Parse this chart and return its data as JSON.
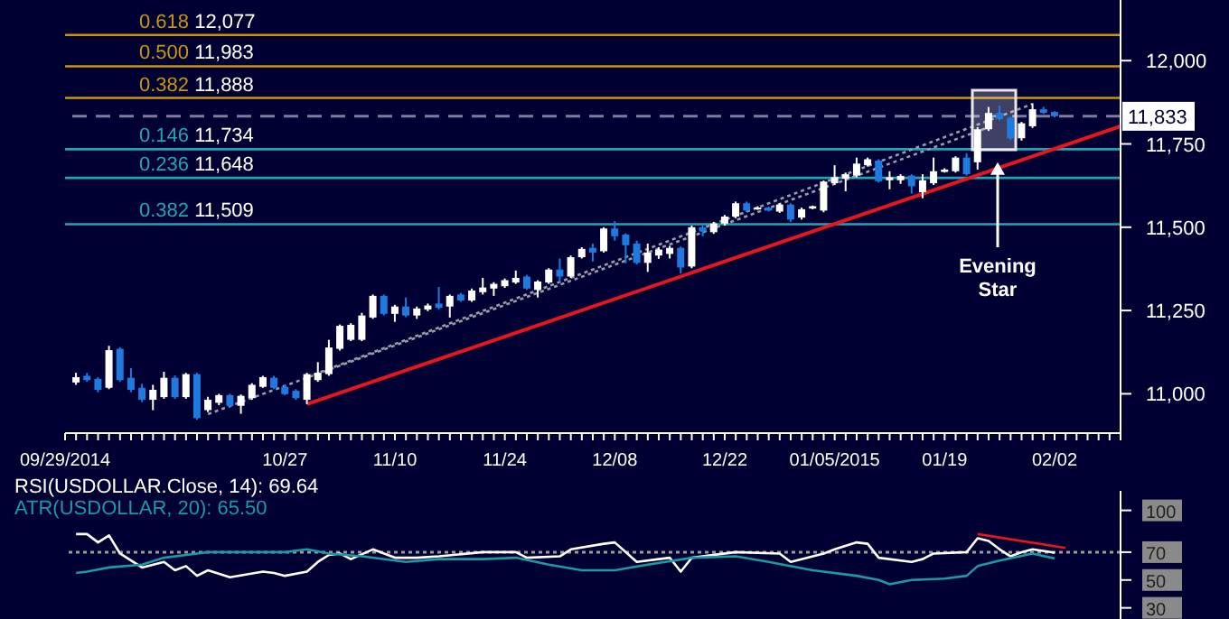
{
  "chart_data": [
    {
      "type": "candlestick",
      "categories": [
        "09/29/2014",
        null,
        null,
        null,
        null,
        null,
        null,
        null,
        null,
        null,
        null,
        null,
        null,
        null,
        null,
        null,
        null,
        null,
        null,
        null,
        "10/27",
        null,
        null,
        null,
        null,
        null,
        null,
        null,
        null,
        null,
        "11/10",
        null,
        null,
        null,
        null,
        null,
        null,
        null,
        null,
        null,
        "11/24",
        null,
        null,
        null,
        null,
        null,
        null,
        null,
        null,
        null,
        "12/08",
        null,
        null,
        null,
        null,
        null,
        null,
        null,
        null,
        null,
        "12/22",
        null,
        null,
        null,
        null,
        null,
        null,
        null,
        null,
        null,
        "01/05/2015",
        null,
        null,
        null,
        null,
        null,
        null,
        null,
        null,
        null,
        "01/19",
        null,
        null,
        null,
        null,
        null,
        null,
        null,
        null,
        null,
        "02/02",
        null,
        null,
        null,
        null,
        null,
        null
      ],
      "ohlc": [
        null,
        [
          11034,
          11063,
          11027,
          11050
        ],
        [
          11054,
          11063,
          11036,
          11041
        ],
        [
          11045,
          11050,
          11005,
          11012
        ],
        [
          11018,
          11144,
          11014,
          11131
        ],
        [
          11135,
          11140,
          11036,
          11041
        ],
        [
          11048,
          11077,
          11005,
          11012
        ],
        [
          11018,
          11030,
          10975,
          10982
        ],
        [
          10982,
          11027,
          10951,
          11012
        ],
        [
          10990,
          11066,
          10985,
          11048
        ],
        [
          11048,
          11055,
          10985,
          10990
        ],
        [
          10990,
          11063,
          10985,
          11059
        ],
        [
          11059,
          11063,
          10922,
          10927
        ],
        [
          10951,
          10991,
          10945,
          10982
        ],
        [
          10973,
          11000,
          10966,
          10996
        ],
        [
          10996,
          11000,
          10960,
          10964
        ],
        [
          10964,
          10998,
          10940,
          10994
        ],
        [
          10987,
          11032,
          10982,
          11027
        ],
        [
          11021,
          11054,
          11018,
          11050
        ],
        [
          11048,
          11054,
          11014,
          11018
        ],
        [
          11021,
          11027,
          10996,
          10999
        ],
        [
          11009,
          11014,
          10982,
          10987
        ],
        [
          10982,
          11063,
          10969,
          11059
        ],
        [
          11041,
          11095,
          11036,
          11063
        ],
        [
          11059,
          11162,
          11054,
          11139
        ],
        [
          11135,
          11208,
          11130,
          11204
        ],
        [
          11162,
          11212,
          11158,
          11207
        ],
        [
          11162,
          11243,
          11158,
          11235
        ],
        [
          11229,
          11298,
          11225,
          11294
        ],
        [
          11294,
          11298,
          11235,
          11240
        ],
        [
          11240,
          11267,
          11216,
          11262
        ],
        [
          11262,
          11289,
          11230,
          11235
        ],
        [
          11235,
          11262,
          11225,
          11256
        ],
        [
          11253,
          11271,
          11248,
          11265
        ],
        [
          11271,
          11321,
          11253,
          11258
        ],
        [
          11262,
          11298,
          11229,
          11294
        ],
        [
          11298,
          11303,
          11276,
          11280
        ],
        [
          11280,
          11316,
          11276,
          11310
        ],
        [
          11305,
          11348,
          11298,
          11319
        ],
        [
          11316,
          11335,
          11294,
          11330
        ],
        [
          11323,
          11346,
          11318,
          11341
        ],
        [
          11334,
          11370,
          11330,
          11348
        ],
        [
          11352,
          11357,
          11312,
          11316
        ],
        [
          11312,
          11341,
          11289,
          11337
        ],
        [
          11334,
          11377,
          11330,
          11373
        ],
        [
          11373,
          11406,
          11334,
          11352
        ],
        [
          11352,
          11415,
          11348,
          11410
        ],
        [
          11410,
          11440,
          11406,
          11435
        ],
        [
          11438,
          11451,
          11397,
          11424
        ],
        [
          11428,
          11500,
          11424,
          11496
        ],
        [
          11496,
          11518,
          11460,
          11473
        ],
        [
          11478,
          11482,
          11392,
          11446
        ],
        [
          11451,
          11460,
          11388,
          11393
        ],
        [
          11393,
          11451,
          11366,
          11424
        ],
        [
          11415,
          11440,
          11405,
          11433
        ],
        [
          11420,
          11444,
          11406,
          11438
        ],
        [
          11438,
          11442,
          11361,
          11379
        ],
        [
          11382,
          11505,
          11377,
          11500
        ],
        [
          11500,
          11505,
          11473,
          11487
        ],
        [
          11485,
          11516,
          11480,
          11511
        ],
        [
          11511,
          11537,
          11505,
          11532
        ],
        [
          11532,
          11577,
          11527,
          11572
        ],
        [
          11572,
          11577,
          11545,
          11550
        ],
        [
          11556,
          11563,
          11552,
          11559
        ],
        [
          11559,
          11562,
          11547,
          11550
        ],
        [
          11547,
          11572,
          11543,
          11568
        ],
        [
          11568,
          11572,
          11516,
          11523
        ],
        [
          11529,
          11559,
          11523,
          11554
        ],
        [
          11556,
          11565,
          11554,
          11563
        ],
        [
          11550,
          11640,
          11545,
          11637
        ],
        [
          11632,
          11686,
          11627,
          11650
        ],
        [
          11646,
          11664,
          11608,
          11659
        ],
        [
          11655,
          11709,
          11650,
          11691
        ],
        [
          11686,
          11709,
          11682,
          11704
        ],
        [
          11700,
          11704,
          11634,
          11638
        ],
        [
          11641,
          11668,
          11614,
          11650
        ],
        [
          11641,
          11659,
          11630,
          11654
        ],
        [
          11655,
          11659,
          11601,
          11623
        ],
        [
          11605,
          11659,
          11587,
          11641
        ],
        [
          11632,
          11709,
          11627,
          11668
        ],
        [
          11666,
          11677,
          11664,
          11673
        ],
        [
          11668,
          11713,
          11664,
          11709
        ],
        [
          11709,
          11722,
          11655,
          11659
        ],
        [
          11695,
          11800,
          11673,
          11794
        ],
        [
          11794,
          11861,
          11789,
          11843
        ],
        [
          11843,
          11865,
          11820,
          11825
        ],
        [
          11828,
          11832,
          11762,
          11767
        ],
        [
          11767,
          11816,
          11760,
          11812
        ],
        [
          11803,
          11872,
          11798,
          11854
        ],
        [
          11854,
          11861,
          11840,
          11843
        ],
        [
          11846,
          11848,
          11830,
          11833
        ],
        null,
        null,
        null,
        null,
        null,
        null
      ],
      "series": [
        {
          "type": "line",
          "color": "#e8141e",
          "values": [
            null,
            null,
            null,
            null,
            null,
            null,
            null,
            null,
            null,
            null,
            null,
            null,
            null,
            null,
            null,
            null,
            null,
            null,
            null,
            null,
            null,
            null,
            10969,
            null,
            null,
            null,
            null,
            null,
            null,
            null,
            null,
            null,
            null,
            null,
            null,
            null,
            null,
            null,
            null,
            null,
            null,
            null,
            null,
            null,
            null,
            null,
            null,
            null,
            null,
            null,
            null,
            null,
            null,
            null,
            null,
            null,
            null,
            null,
            null,
            null,
            null,
            null,
            null,
            null,
            null,
            null,
            null,
            null,
            null,
            null,
            null,
            null,
            null,
            null,
            null,
            null,
            null,
            null,
            null,
            null,
            null,
            null,
            null,
            null,
            null,
            null,
            null,
            null,
            null,
            null,
            null,
            null,
            null,
            null,
            null,
            null,
            11803
          ]
        },
        {
          "type": "line",
          "color": "#9a9aaa",
          "line_style": "dotted",
          "values": [
            null,
            null,
            null,
            null,
            null,
            null,
            null,
            null,
            null,
            null,
            null,
            null,
            null,
            null,
            null,
            null,
            null,
            null,
            null,
            null,
            null,
            null,
            11050,
            null,
            null,
            null,
            null,
            null,
            null,
            null,
            null,
            null,
            null,
            null,
            null,
            null,
            null,
            null,
            null,
            null,
            null,
            null,
            null,
            null,
            null,
            null,
            null,
            null,
            null,
            null,
            null,
            null,
            null,
            null,
            null,
            null,
            null,
            null,
            null,
            null,
            null,
            null,
            null,
            null,
            null,
            null,
            null,
            null,
            null,
            null,
            null,
            null,
            null,
            null,
            null,
            null,
            null,
            null,
            null,
            null,
            null,
            null,
            null,
            null,
            null,
            null,
            null,
            null,
            11870,
            null,
            null,
            null,
            null,
            null,
            null,
            null,
            null
          ]
        },
        {
          "type": "line",
          "color": "#9a9aaa",
          "line_style": "dotted",
          "values": [
            null,
            null,
            null,
            null,
            null,
            null,
            null,
            null,
            null,
            null,
            null,
            null,
            null,
            10939,
            null,
            null,
            null,
            null,
            null,
            null,
            null,
            null,
            null,
            null,
            null,
            null,
            null,
            null,
            null,
            null,
            null,
            null,
            null,
            null,
            null,
            null,
            null,
            null,
            null,
            null,
            null,
            null,
            null,
            null,
            null,
            null,
            null,
            null,
            null,
            null,
            null,
            null,
            null,
            null,
            null,
            null,
            null,
            null,
            null,
            null,
            null,
            null,
            null,
            null,
            null,
            null,
            null,
            null,
            null,
            null,
            null,
            null,
            null,
            null,
            null,
            null,
            null,
            null,
            null,
            null,
            null,
            null,
            null,
            null,
            11800,
            null,
            null,
            null,
            null,
            null,
            null,
            null,
            null,
            null,
            null,
            null,
            null
          ]
        }
      ],
      "ylim": [
        10882,
        12182
      ],
      "yticks": [
        {
          "value": 11000,
          "label": "11,000"
        },
        {
          "value": 11250,
          "label": "11,250"
        },
        {
          "value": 11500,
          "label": "11,500"
        },
        {
          "value": 11750,
          "label": "11,750"
        },
        {
          "value": 12000,
          "label": "12,000"
        }
      ],
      "ref_lines": [
        {
          "axis": "y",
          "value": 12077,
          "label": "0.618 12,077",
          "color": "#c8960a"
        },
        {
          "axis": "y",
          "value": 11983,
          "label": "0.500 11,983",
          "color": "#c8960a"
        },
        {
          "axis": "y",
          "value": 11888,
          "label": "0.382 11,888",
          "color": "#c8960a"
        },
        {
          "axis": "y",
          "value": 11833,
          "label": "11,833",
          "color": "#7c7c9c",
          "line_style": "dashed"
        },
        {
          "axis": "y",
          "value": 11734,
          "label": "0.146 11,734",
          "color": "#1fa5b4"
        },
        {
          "axis": "y",
          "value": 11648,
          "label": "0.236 11,648",
          "color": "#1fa5b4"
        },
        {
          "axis": "y",
          "value": 11509,
          "label": "0.382 11,509",
          "color": "#1fa5b4"
        }
      ],
      "annotations": [
        {
          "text": "Evening Star",
          "y": 11695
        }
      ]
    },
    {
      "type": "line",
      "categories": [
        null,
        null,
        null,
        null,
        null,
        null,
        null,
        null,
        null,
        null,
        null,
        null,
        null,
        null,
        null,
        null,
        null,
        null,
        null,
        null,
        null,
        null,
        null,
        null,
        null,
        null,
        null,
        null,
        null,
        null,
        null,
        null,
        null,
        null,
        null,
        null,
        null,
        null,
        null,
        null,
        null,
        null,
        null,
        null,
        null,
        null,
        null,
        null,
        null,
        null,
        null,
        null,
        null,
        null,
        null,
        null,
        null,
        null,
        null,
        null,
        null,
        null,
        null,
        null,
        null,
        null,
        null,
        null,
        null,
        null,
        null,
        null,
        null,
        null,
        null,
        null,
        null,
        null,
        null,
        null,
        null,
        null,
        null,
        null,
        null,
        null,
        null,
        null,
        null,
        null,
        null,
        null,
        null,
        null,
        null,
        null,
        null
      ],
      "tick_labels": "y",
      "legend": "top left",
      "series": [
        {
          "name": "RSI(USDOLLAR.Close, 14): 69.64",
          "color": "#ffffff",
          "values": [
            null,
            83,
            83,
            77,
            82,
            69,
            null,
            59,
            null,
            63,
            57,
            60,
            53,
            57,
            null,
            52,
            null,
            null,
            56,
            55,
            53,
            null,
            56,
            63,
            68,
            69,
            65,
            null,
            72,
            null,
            66,
            null,
            66,
            null,
            67,
            null,
            null,
            null,
            70,
            null,
            null,
            70,
            66,
            null,
            null,
            67,
            72,
            null,
            null,
            76,
            77,
            null,
            63,
            null,
            65,
            66,
            56,
            66,
            null,
            null,
            null,
            70,
            null,
            null,
            null,
            69,
            63,
            null,
            null,
            69,
            72,
            null,
            77,
            76,
            66,
            null,
            null,
            63,
            65,
            69,
            null,
            null,
            70,
            80,
            78,
            72,
            67,
            70,
            72,
            null,
            69.64,
            null,
            null,
            null,
            null,
            null,
            null
          ]
        },
        {
          "name": "ATR(USDOLLAR, 20): 65.50",
          "color": "#1a9aa6",
          "values": [
            null,
            55,
            56,
            null,
            59,
            null,
            null,
            61,
            null,
            66,
            null,
            null,
            69,
            70,
            null,
            null,
            null,
            70,
            null,
            null,
            70,
            null,
            72,
            null,
            69,
            null,
            null,
            67,
            null,
            null,
            null,
            63,
            null,
            null,
            65,
            null,
            null,
            null,
            65,
            null,
            null,
            66,
            null,
            null,
            61,
            null,
            null,
            57,
            null,
            null,
            57,
            null,
            null,
            61,
            null,
            null,
            null,
            66,
            null,
            null,
            null,
            67,
            null,
            null,
            63,
            null,
            null,
            null,
            57,
            null,
            null,
            null,
            53,
            null,
            50,
            47,
            null,
            50,
            null,
            null,
            51,
            null,
            53,
            60,
            null,
            64,
            null,
            null,
            69,
            null,
            65.5,
            null,
            null,
            null,
            null,
            null,
            null
          ]
        },
        {
          "color": "#e8141e",
          "values": [
            null,
            null,
            null,
            null,
            null,
            null,
            null,
            null,
            null,
            null,
            null,
            null,
            null,
            null,
            null,
            null,
            null,
            null,
            null,
            null,
            null,
            null,
            null,
            null,
            null,
            null,
            null,
            null,
            null,
            null,
            null,
            null,
            null,
            null,
            null,
            null,
            null,
            null,
            null,
            null,
            null,
            null,
            null,
            null,
            null,
            null,
            null,
            null,
            null,
            null,
            null,
            null,
            null,
            null,
            null,
            null,
            null,
            null,
            null,
            null,
            null,
            null,
            null,
            null,
            null,
            null,
            null,
            null,
            null,
            null,
            null,
            null,
            null,
            null,
            null,
            null,
            null,
            null,
            null,
            null,
            null,
            null,
            null,
            83,
            null,
            null,
            null,
            null,
            null,
            null,
            null,
            73,
            null,
            null,
            null,
            null,
            null
          ]
        }
      ],
      "ylim": [
        22,
        114
      ],
      "yticks": [
        30,
        50,
        70,
        100
      ],
      "ref_lines": [
        {
          "axis": "y",
          "value": 70,
          "color": "#9a9a9a",
          "line_style": "dotted"
        }
      ]
    }
  ]
}
